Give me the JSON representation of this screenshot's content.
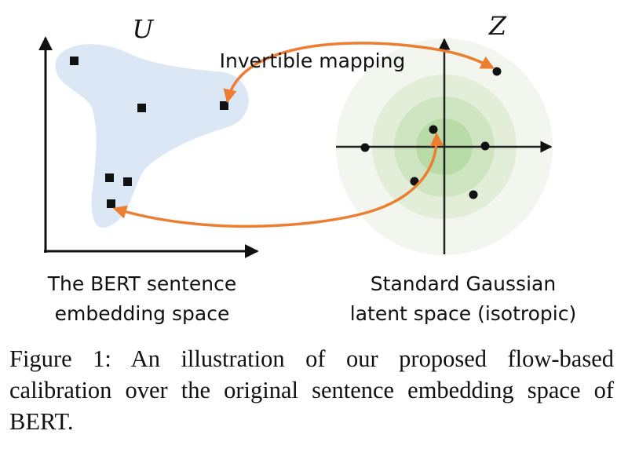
{
  "left_panel": {
    "space_symbol": "U",
    "label_line1": "The BERT sentence",
    "label_line2": "embedding space"
  },
  "right_panel": {
    "space_symbol": "Z",
    "label_line1": "Standard Gaussian",
    "label_line2": "latent space (isotropic)"
  },
  "mapping_label": "Invertible mapping",
  "caption": "Figure 1:   An illustration of our proposed flow-based calibration over the original sentence embedding space of BERT.",
  "colors": {
    "blob": "#dbe7f4",
    "arrow": "#ed7d31",
    "gaussian_outer": "#f2f6ee",
    "gaussian_mid": "#e2eed8",
    "gaussian_inner": "#cfe5c1",
    "gaussian_core": "#b9dba7"
  }
}
